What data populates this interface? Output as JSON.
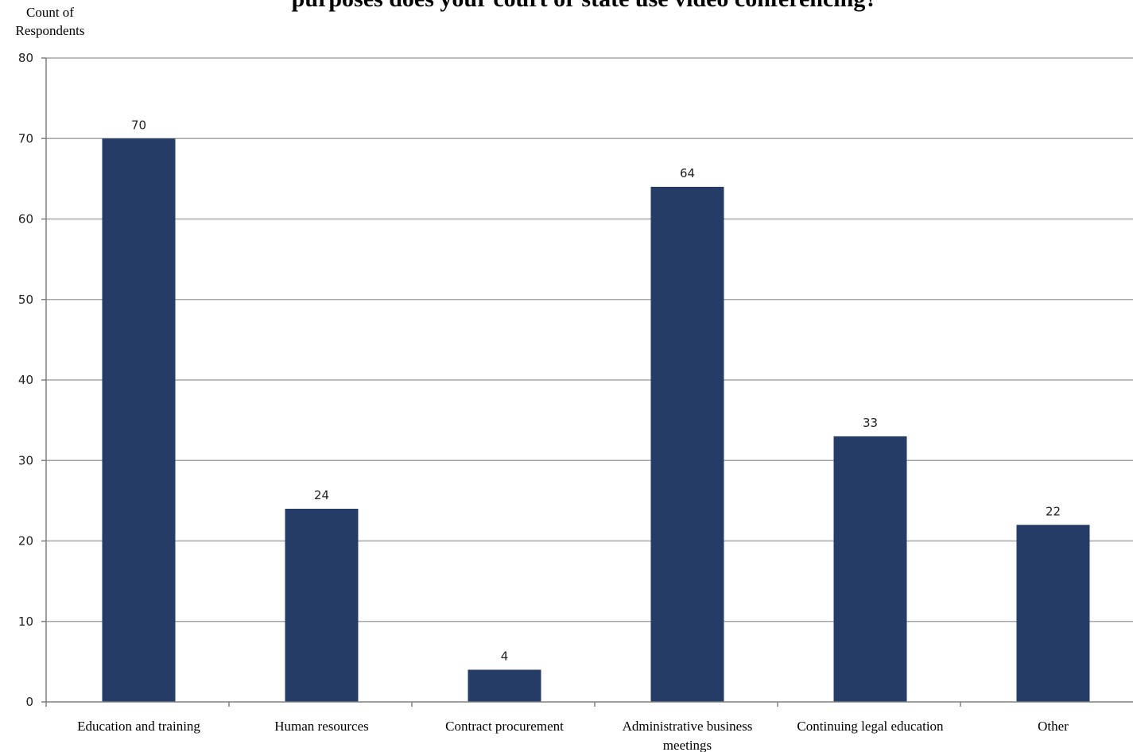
{
  "chart_data": {
    "type": "bar",
    "title": "purposes does your court or state use video conferencing?",
    "ylabel": [
      "Count of",
      "Respondents"
    ],
    "xlabel": "",
    "ylim": [
      0,
      80
    ],
    "yticks": [
      0,
      10,
      20,
      30,
      40,
      50,
      60,
      70,
      80
    ],
    "categories": [
      [
        "Education and training"
      ],
      [
        "Human resources"
      ],
      [
        "Contract procurement"
      ],
      [
        "Administrative business",
        "meetings"
      ],
      [
        "Continuing legal  education"
      ],
      [
        "Other"
      ]
    ],
    "values": [
      70,
      24,
      4,
      64,
      33,
      22
    ],
    "data_labels": [
      "70",
      "24",
      "4",
      "64",
      "33",
      "22"
    ],
    "grid": true,
    "legend": "none",
    "colors": {
      "bar": "#253C66",
      "grid": "#a6a6a6",
      "axis": "#808080"
    }
  }
}
